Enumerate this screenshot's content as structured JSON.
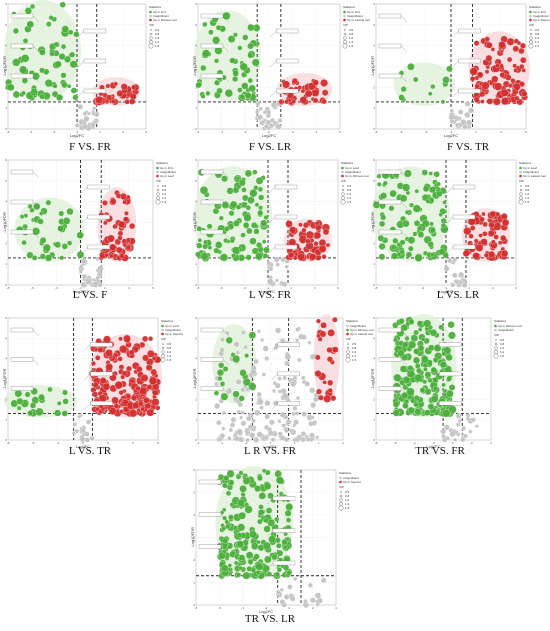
{
  "chart_data": [
    {
      "type": "scatter",
      "caption": "F VS. FR",
      "xlabel": "Log2FC",
      "ylabel": "-Log10FDR",
      "legend": {
        "title": "Statistics",
        "items": [
          "Up in Frnt",
          "Insignificant",
          "Up in Fibrous root"
        ],
        "vip_title": "VIP",
        "vip": [
          "0.5",
          "0.8",
          "1.0",
          "1.2",
          "1.5"
        ]
      },
      "xlim": [
        -8,
        6
      ],
      "ylim": [
        0,
        6
      ],
      "x_thresholds": [
        -1,
        1
      ],
      "y_threshold": 1.3,
      "clusters": [
        {
          "color": "green",
          "x": [
            -8,
            -1
          ],
          "y": [
            1.5,
            6
          ],
          "n": 70
        },
        {
          "color": "red",
          "x": [
            1,
            5
          ],
          "y": [
            1.3,
            2.3
          ],
          "n": 40
        },
        {
          "color": "gray",
          "x": [
            -1,
            1
          ],
          "y": [
            0,
            1.3
          ],
          "n": 25
        }
      ]
    },
    {
      "type": "scatter",
      "caption": "F VS. LR",
      "xlabel": "Log2FC",
      "ylabel": "-Log10FDR",
      "legend": {
        "title": "Statistics",
        "items": [
          "Up in Frnt",
          "Insignificant",
          "Up in Lateral root"
        ],
        "vip_title": "VIP",
        "vip": [
          "0.5",
          "0.8",
          "1.0",
          "1.2",
          "1.5"
        ]
      },
      "xlim": [
        -6,
        6
      ],
      "ylim": [
        0,
        6
      ],
      "x_thresholds": [
        -1,
        1
      ],
      "y_threshold": 1.3,
      "clusters": [
        {
          "color": "green",
          "x": [
            -6,
            -1
          ],
          "y": [
            1.5,
            5.5
          ],
          "n": 65
        },
        {
          "color": "red",
          "x": [
            1,
            5
          ],
          "y": [
            1.3,
            2.5
          ],
          "n": 45
        },
        {
          "color": "gray",
          "x": [
            -1,
            1
          ],
          "y": [
            0,
            1.3
          ],
          "n": 25
        }
      ]
    },
    {
      "type": "scatter",
      "caption": "F VS. TR",
      "xlabel": "Log2FC",
      "ylabel": "-Log10FDR",
      "legend": {
        "title": "Statistics",
        "items": [
          "Up in Frnt",
          "Insignificant",
          "Up in Taproot"
        ],
        "vip_title": "VIP",
        "vip": [
          "0.5",
          "0.8",
          "1.0",
          "1.2",
          "1.5"
        ]
      },
      "xlim": [
        -8,
        6
      ],
      "ylim": [
        0,
        6
      ],
      "x_thresholds": [
        -1,
        1
      ],
      "y_threshold": 1.3,
      "clusters": [
        {
          "color": "green",
          "x": [
            -6,
            -1
          ],
          "y": [
            1.3,
            3
          ],
          "n": 12
        },
        {
          "color": "red",
          "x": [
            1,
            6
          ],
          "y": [
            1.3,
            4.5
          ],
          "n": 110
        },
        {
          "color": "gray",
          "x": [
            -1,
            1
          ],
          "y": [
            0,
            1.3
          ],
          "n": 20
        }
      ]
    },
    {
      "type": "scatter",
      "caption": "L VS. F",
      "xlabel": "Log2FC",
      "ylabel": "-Log10FDR",
      "legend": {
        "title": "Statistics",
        "items": [
          "Up in Frnt",
          "Insignificant",
          "Up in Leaf"
        ],
        "vip_title": "VIP",
        "vip": [
          "0.5",
          "0.8",
          "1.0",
          "1.2",
          "1.5"
        ]
      },
      "xlim": [
        -8,
        6
      ],
      "ylim": [
        0,
        6
      ],
      "x_thresholds": [
        -1,
        1
      ],
      "y_threshold": 1.3,
      "clusters": [
        {
          "color": "green",
          "x": [
            -7,
            -1
          ],
          "y": [
            1.3,
            4
          ],
          "n": 40
        },
        {
          "color": "red",
          "x": [
            1,
            4
          ],
          "y": [
            1.3,
            4.5
          ],
          "n": 60
        },
        {
          "color": "gray",
          "x": [
            -1,
            1
          ],
          "y": [
            0,
            1.3
          ],
          "n": 25
        }
      ]
    },
    {
      "type": "scatter",
      "caption": "L VS. FR",
      "xlabel": "Log2FC",
      "ylabel": "-Log10FDR",
      "legend": {
        "title": "Statistics",
        "items": [
          "Up in Leaf",
          "Insignificant",
          "Up in Fibrous root"
        ],
        "vip_title": "VIP",
        "vip": [
          "0.5",
          "0.8",
          "1.0",
          "1.2",
          "1.5"
        ]
      },
      "xlim": [
        -8,
        6
      ],
      "ylim": [
        0,
        6
      ],
      "x_thresholds": [
        -1,
        1
      ],
      "y_threshold": 1.3,
      "clusters": [
        {
          "color": "green",
          "x": [
            -8,
            -1
          ],
          "y": [
            1.3,
            5.5
          ],
          "n": 110
        },
        {
          "color": "red",
          "x": [
            1,
            5
          ],
          "y": [
            1.3,
            3
          ],
          "n": 70
        },
        {
          "color": "gray",
          "x": [
            -1,
            1
          ],
          "y": [
            0,
            1.3
          ],
          "n": 15
        }
      ]
    },
    {
      "type": "scatter",
      "caption": "L VS. LR",
      "xlabel": "Log2FC",
      "ylabel": "-Log10FDR",
      "legend": {
        "title": "Statistics",
        "items": [
          "Up in Leaf",
          "Insignificant",
          "Up in Lateral root"
        ],
        "vip_title": "VIP",
        "vip": [
          "0.5",
          "0.8",
          "1.0",
          "1.2",
          "1.5"
        ]
      },
      "xlim": [
        -8,
        6
      ],
      "ylim": [
        0,
        6
      ],
      "x_thresholds": [
        -1,
        1
      ],
      "y_threshold": 1.3,
      "clusters": [
        {
          "color": "green",
          "x": [
            -8,
            -1
          ],
          "y": [
            1.3,
            5.5
          ],
          "n": 110
        },
        {
          "color": "red",
          "x": [
            1,
            5
          ],
          "y": [
            1.3,
            3.5
          ],
          "n": 80
        },
        {
          "color": "gray",
          "x": [
            -1,
            1
          ],
          "y": [
            0,
            1.3
          ],
          "n": 15
        }
      ]
    },
    {
      "type": "scatter",
      "caption": "L  VS. TR",
      "xlabel": "Log2FC",
      "ylabel": "-Log10FDR",
      "legend": {
        "title": "Statistics",
        "items": [
          "Up in Leaf",
          "Insignificant",
          "Up in Taproot"
        ],
        "vip_title": "VIP",
        "vip": [
          "0.5",
          "0.8",
          "1.0",
          "1.2",
          "1.5"
        ]
      },
      "xlim": [
        -8,
        8
      ],
      "ylim": [
        0,
        6
      ],
      "x_thresholds": [
        -1,
        1
      ],
      "y_threshold": 1.3,
      "clusters": [
        {
          "color": "green",
          "x": [
            -8,
            -1
          ],
          "y": [
            1.3,
            2.5
          ],
          "n": 20
        },
        {
          "color": "red",
          "x": [
            1,
            8
          ],
          "y": [
            1.3,
            5
          ],
          "n": 220
        },
        {
          "color": "gray",
          "x": [
            -1,
            1
          ],
          "y": [
            0,
            1.3
          ],
          "n": 20
        }
      ]
    },
    {
      "type": "scatter",
      "caption": "L R VS. FR",
      "xlabel": "Log2FC",
      "ylabel": "-Log10FDR",
      "legend": {
        "title": "Statistics",
        "items": [
          "Insignificant",
          "Up in Fibrous root",
          "Up in Lateral root"
        ],
        "vip_title": "VIP",
        "vip": [
          "0.5",
          "0.8",
          "1.0",
          "1.2",
          "1.5"
        ]
      },
      "xlim": [
        -2,
        2
      ],
      "ylim": [
        0,
        6
      ],
      "x_thresholds": [
        -0.5,
        0.5
      ],
      "y_threshold": 1.3,
      "clusters": [
        {
          "color": "green",
          "x": [
            -1.5,
            -0.5
          ],
          "y": [
            2,
            5.5
          ],
          "n": 18
        },
        {
          "color": "red",
          "x": [
            1.3,
            1.8
          ],
          "y": [
            2,
            6
          ],
          "n": 25
        },
        {
          "color": "gray",
          "x": [
            -1.5,
            1.3
          ],
          "y": [
            0,
            5.5
          ],
          "n": 180
        }
      ]
    },
    {
      "type": "scatter",
      "caption": "TR VS. FR",
      "xlabel": "Log2FC",
      "ylabel": "-Log10FDR",
      "legend": {
        "title": "Statistics",
        "items": [
          "Up in Fibrous root",
          "Insignificant"
        ],
        "vip_title": "VIP",
        "vip": [
          "0.5",
          "0.8",
          "1.0",
          "1.2",
          "1.5"
        ]
      },
      "xlim": [
        -8,
        4
      ],
      "ylim": [
        0,
        6
      ],
      "x_thresholds": [
        -1,
        1
      ],
      "y_threshold": 1.3,
      "clusters": [
        {
          "color": "green",
          "x": [
            -6,
            0
          ],
          "y": [
            1.3,
            6
          ],
          "n": 230
        },
        {
          "color": "gray",
          "x": [
            -1,
            3
          ],
          "y": [
            0,
            1.3
          ],
          "n": 25
        }
      ]
    },
    {
      "type": "scatter",
      "caption": "TR VS. LR",
      "xlabel": "Log2FC",
      "ylabel": "-Log10FDR",
      "legend": {
        "title": "Statistics",
        "items": [
          "Insignificant",
          "Up in Taproot"
        ],
        "vip_title": "VIP",
        "vip": [
          "0.5",
          "0.8",
          "1.0",
          "1.2",
          "1.5"
        ]
      },
      "xlim": [
        -8,
        4
      ],
      "ylim": [
        0,
        6
      ],
      "x_thresholds": [
        -1,
        1
      ],
      "y_threshold": 1.3,
      "clusters": [
        {
          "color": "green",
          "x": [
            -6,
            0
          ],
          "y": [
            1.3,
            6
          ],
          "n": 220
        },
        {
          "color": "gray",
          "x": [
            -1,
            3
          ],
          "y": [
            0,
            1.3
          ],
          "n": 20
        }
      ]
    }
  ],
  "colors": {
    "green": "#4caf3c",
    "red": "#d32f2f",
    "gray": "#c4c4c4",
    "shade_green": "#dff0d8",
    "shade_red": "#f8d7da"
  }
}
